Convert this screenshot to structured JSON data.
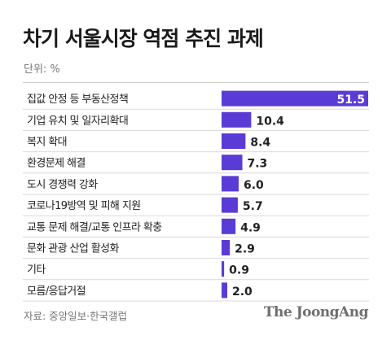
{
  "chart_data": {
    "type": "bar",
    "orientation": "horizontal",
    "title": "차기 서울시장 역점 추진 과제",
    "unit_label": "단위: %",
    "categories": [
      "집값 안정 등 부동산정책",
      "기업 유치 및 일자리확대",
      "복지 확대",
      "환경문제 해결",
      "도시 경쟁력 강화",
      "코로나19방역 및 피해 지원",
      "교통 문제 해결/교통 인프라 확충",
      "문화 관광 산업 활성화",
      "기타",
      "모름/응답거절"
    ],
    "values": [
      51.5,
      10.4,
      8.4,
      7.3,
      6.0,
      5.7,
      4.9,
      2.9,
      0.9,
      2.0
    ],
    "value_labels": [
      "51.5",
      "10.4",
      "8.4",
      "7.3",
      "6.0",
      "5.7",
      "4.9",
      "2.9",
      "0.9",
      "2.0"
    ],
    "bar_color": "#5b3bd6",
    "highlight_label_color": "#ffffff",
    "label_color": "#222222",
    "grid": false,
    "legend": "none"
  },
  "source": "자료: 중앙일보·한국갤럽",
  "brand": "The JoongAng"
}
